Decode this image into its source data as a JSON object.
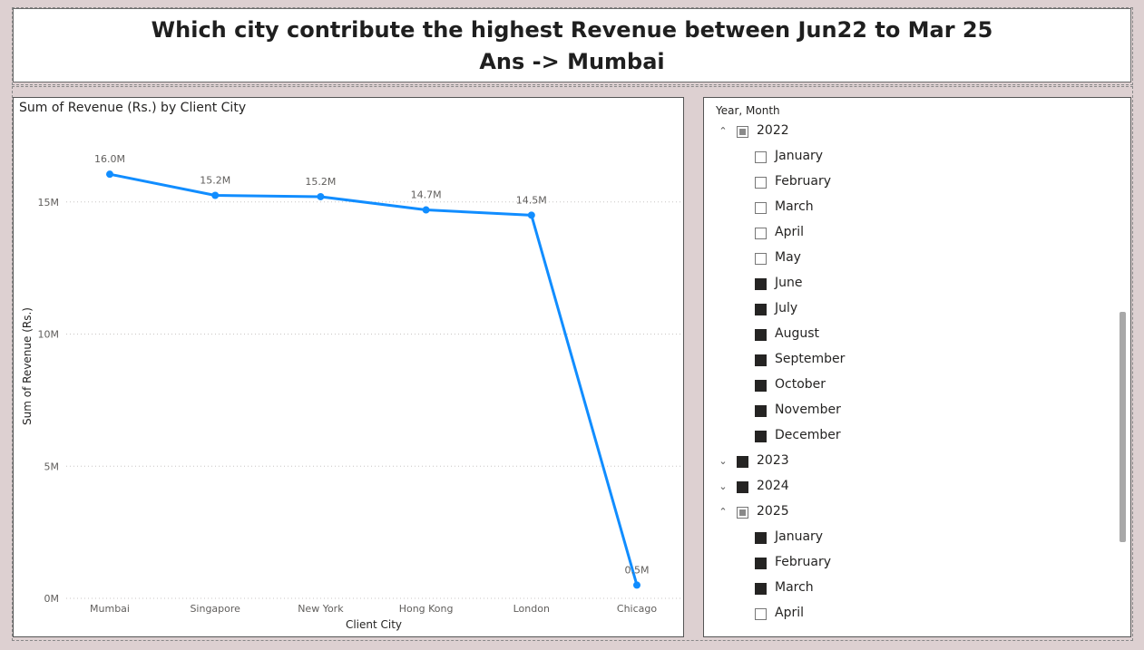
{
  "header": {
    "line1": "Which city contribute the highest Revenue between Jun22 to Mar 25",
    "line2": "Ans -> Mumbai"
  },
  "chart_data": {
    "type": "line",
    "title": "Sum of Revenue (Rs.) by Client City",
    "xlabel": "Client City",
    "ylabel": "Sum of Revenue (Rs.)",
    "categories": [
      "Mumbai",
      "Singapore",
      "New York",
      "Hong Kong",
      "London",
      "Chicago"
    ],
    "values": [
      16.05,
      15.25,
      15.2,
      14.7,
      14.5,
      0.5
    ],
    "data_labels": [
      "16.0M",
      "15.2M",
      "15.2M",
      "14.7M",
      "14.5M",
      "0.5M"
    ],
    "y_ticks": [
      0,
      5,
      10,
      15
    ],
    "y_tick_labels": [
      "0M",
      "5M",
      "10M",
      "15M"
    ],
    "ylim": [
      0,
      17.6
    ],
    "grid": true,
    "line_color": "#118dff"
  },
  "slicer": {
    "header": "Year, Month",
    "rows": [
      {
        "type": "year",
        "label": "2022",
        "state": "partial",
        "expanded": true
      },
      {
        "type": "month",
        "label": "January",
        "state": "unchecked"
      },
      {
        "type": "month",
        "label": "February",
        "state": "unchecked"
      },
      {
        "type": "month",
        "label": "March",
        "state": "unchecked"
      },
      {
        "type": "month",
        "label": "April",
        "state": "unchecked"
      },
      {
        "type": "month",
        "label": "May",
        "state": "unchecked"
      },
      {
        "type": "month",
        "label": "June",
        "state": "checked"
      },
      {
        "type": "month",
        "label": "July",
        "state": "checked"
      },
      {
        "type": "month",
        "label": "August",
        "state": "checked"
      },
      {
        "type": "month",
        "label": "September",
        "state": "checked"
      },
      {
        "type": "month",
        "label": "October",
        "state": "checked"
      },
      {
        "type": "month",
        "label": "November",
        "state": "checked"
      },
      {
        "type": "month",
        "label": "December",
        "state": "checked"
      },
      {
        "type": "year",
        "label": "2023",
        "state": "checked",
        "expanded": false
      },
      {
        "type": "year",
        "label": "2024",
        "state": "checked",
        "expanded": false
      },
      {
        "type": "year",
        "label": "2025",
        "state": "partial",
        "expanded": true
      },
      {
        "type": "month",
        "label": "January",
        "state": "checked"
      },
      {
        "type": "month",
        "label": "February",
        "state": "checked"
      },
      {
        "type": "month",
        "label": "March",
        "state": "checked"
      },
      {
        "type": "month",
        "label": "April",
        "state": "unchecked"
      }
    ]
  }
}
